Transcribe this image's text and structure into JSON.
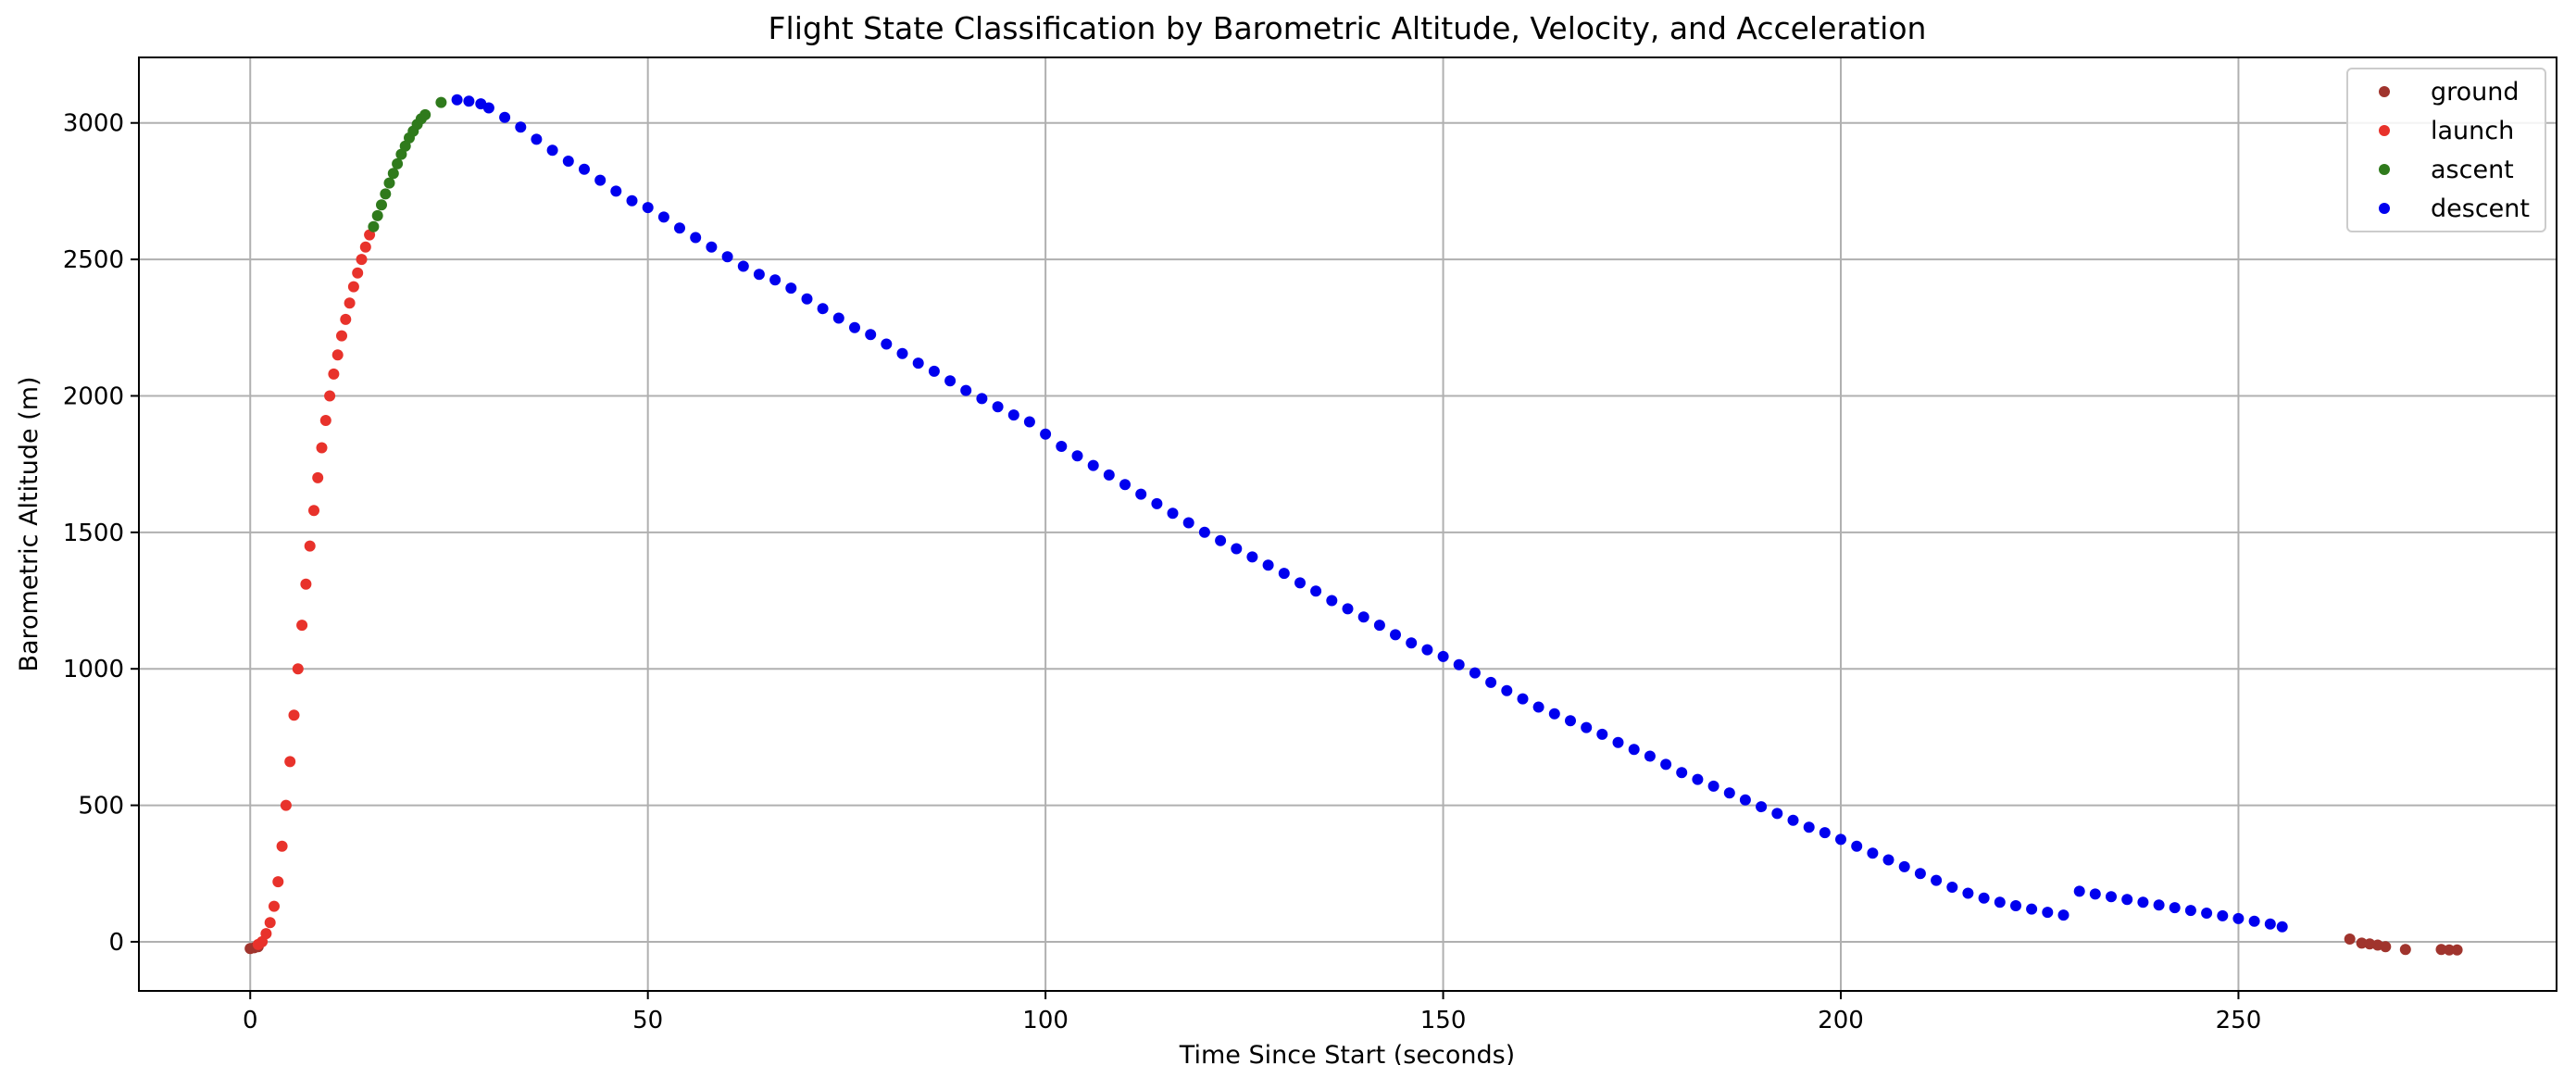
{
  "chart_data": {
    "type": "scatter",
    "title": "Flight State Classification by Barometric Altitude, Velocity, and Acceleration",
    "xlabel": "Time Since Start (seconds)",
    "ylabel": "Barometric Altitude (m)",
    "xlim": [
      -14,
      290
    ],
    "ylim": [
      -180,
      3240
    ],
    "xticks": [
      0,
      50,
      100,
      150,
      200,
      250
    ],
    "yticks": [
      0,
      500,
      1000,
      1500,
      2000,
      2500,
      3000
    ],
    "grid": true,
    "legend_position": "top-right",
    "series": [
      {
        "name": "ground",
        "color": "#a0342d",
        "points": [
          [
            0,
            -25
          ],
          [
            0.5,
            -22
          ],
          [
            1,
            -18
          ],
          [
            264,
            10
          ],
          [
            265.5,
            -5
          ],
          [
            266.5,
            -8
          ],
          [
            267.5,
            -12
          ],
          [
            268.5,
            -18
          ],
          [
            271,
            -28
          ],
          [
            275.5,
            -28
          ],
          [
            276.5,
            -30
          ],
          [
            277.5,
            -30
          ]
        ]
      },
      {
        "name": "launch",
        "color": "#e8322b",
        "points": [
          [
            1,
            -10
          ],
          [
            1.5,
            0
          ],
          [
            2,
            30
          ],
          [
            2.5,
            70
          ],
          [
            3,
            130
          ],
          [
            3.5,
            220
          ],
          [
            4,
            350
          ],
          [
            4.5,
            500
          ],
          [
            5,
            660
          ],
          [
            5.5,
            830
          ],
          [
            6,
            1000
          ],
          [
            6.5,
            1160
          ],
          [
            7,
            1310
          ],
          [
            7.5,
            1450
          ],
          [
            8,
            1580
          ],
          [
            8.5,
            1700
          ],
          [
            9,
            1810
          ],
          [
            9.5,
            1910
          ],
          [
            10,
            2000
          ],
          [
            10.5,
            2080
          ],
          [
            11,
            2150
          ],
          [
            11.5,
            2220
          ],
          [
            12,
            2280
          ],
          [
            12.5,
            2340
          ],
          [
            13,
            2400
          ],
          [
            13.5,
            2450
          ],
          [
            14,
            2500
          ],
          [
            14.5,
            2545
          ],
          [
            15,
            2590
          ]
        ]
      },
      {
        "name": "ascent",
        "color": "#2f7a1c",
        "points": [
          [
            15.5,
            2620
          ],
          [
            16,
            2660
          ],
          [
            16.5,
            2700
          ],
          [
            17,
            2740
          ],
          [
            17.5,
            2780
          ],
          [
            18,
            2815
          ],
          [
            18.5,
            2850
          ],
          [
            19,
            2885
          ],
          [
            19.5,
            2915
          ],
          [
            20,
            2945
          ],
          [
            20.5,
            2970
          ],
          [
            21,
            2995
          ],
          [
            21.5,
            3015
          ],
          [
            22,
            3030
          ],
          [
            24,
            3075
          ]
        ]
      },
      {
        "name": "descent",
        "color": "#0000ee",
        "points": [
          [
            26,
            3085
          ],
          [
            27.5,
            3080
          ],
          [
            29,
            3070
          ],
          [
            30,
            3055
          ],
          [
            32,
            3020
          ],
          [
            34,
            2985
          ],
          [
            36,
            2940
          ],
          [
            38,
            2900
          ],
          [
            40,
            2860
          ],
          [
            42,
            2830
          ],
          [
            44,
            2790
          ],
          [
            46,
            2750
          ],
          [
            48,
            2715
          ],
          [
            50,
            2690
          ],
          [
            52,
            2655
          ],
          [
            54,
            2615
          ],
          [
            56,
            2580
          ],
          [
            58,
            2545
          ],
          [
            60,
            2510
          ],
          [
            62,
            2475
          ],
          [
            64,
            2445
          ],
          [
            66,
            2425
          ],
          [
            68,
            2395
          ],
          [
            70,
            2355
          ],
          [
            72,
            2320
          ],
          [
            74,
            2285
          ],
          [
            76,
            2250
          ],
          [
            78,
            2225
          ],
          [
            80,
            2190
          ],
          [
            82,
            2155
          ],
          [
            84,
            2120
          ],
          [
            86,
            2090
          ],
          [
            88,
            2055
          ],
          [
            90,
            2020
          ],
          [
            92,
            1990
          ],
          [
            94,
            1960
          ],
          [
            96,
            1930
          ],
          [
            98,
            1905
          ],
          [
            100,
            1860
          ],
          [
            102,
            1815
          ],
          [
            104,
            1780
          ],
          [
            106,
            1745
          ],
          [
            108,
            1710
          ],
          [
            110,
            1675
          ],
          [
            112,
            1640
          ],
          [
            114,
            1605
          ],
          [
            116,
            1570
          ],
          [
            118,
            1535
          ],
          [
            120,
            1500
          ],
          [
            122,
            1470
          ],
          [
            124,
            1440
          ],
          [
            126,
            1410
          ],
          [
            128,
            1380
          ],
          [
            130,
            1350
          ],
          [
            132,
            1315
          ],
          [
            134,
            1285
          ],
          [
            136,
            1250
          ],
          [
            138,
            1220
          ],
          [
            140,
            1190
          ],
          [
            142,
            1160
          ],
          [
            144,
            1125
          ],
          [
            146,
            1095
          ],
          [
            148,
            1070
          ],
          [
            150,
            1045
          ],
          [
            152,
            1015
          ],
          [
            154,
            985
          ],
          [
            156,
            950
          ],
          [
            158,
            920
          ],
          [
            160,
            890
          ],
          [
            162,
            860
          ],
          [
            164,
            835
          ],
          [
            166,
            810
          ],
          [
            168,
            785
          ],
          [
            170,
            760
          ],
          [
            172,
            730
          ],
          [
            174,
            705
          ],
          [
            176,
            680
          ],
          [
            178,
            650
          ],
          [
            180,
            620
          ],
          [
            182,
            595
          ],
          [
            184,
            570
          ],
          [
            186,
            545
          ],
          [
            188,
            520
          ],
          [
            190,
            495
          ],
          [
            192,
            470
          ],
          [
            194,
            445
          ],
          [
            196,
            420
          ],
          [
            198,
            400
          ],
          [
            200,
            375
          ],
          [
            202,
            350
          ],
          [
            204,
            325
          ],
          [
            206,
            300
          ],
          [
            208,
            275
          ],
          [
            210,
            250
          ],
          [
            212,
            225
          ],
          [
            214,
            200
          ],
          [
            216,
            178
          ],
          [
            218,
            160
          ],
          [
            220,
            145
          ],
          [
            222,
            132
          ],
          [
            224,
            120
          ],
          [
            226,
            108
          ],
          [
            228,
            98
          ],
          [
            230,
            185
          ],
          [
            232,
            175
          ],
          [
            234,
            165
          ],
          [
            236,
            155
          ],
          [
            238,
            145
          ],
          [
            240,
            135
          ],
          [
            242,
            125
          ],
          [
            244,
            115
          ],
          [
            246,
            105
          ],
          [
            248,
            95
          ],
          [
            250,
            85
          ],
          [
            252,
            75
          ],
          [
            254,
            65
          ],
          [
            255.5,
            55
          ]
        ]
      }
    ]
  }
}
